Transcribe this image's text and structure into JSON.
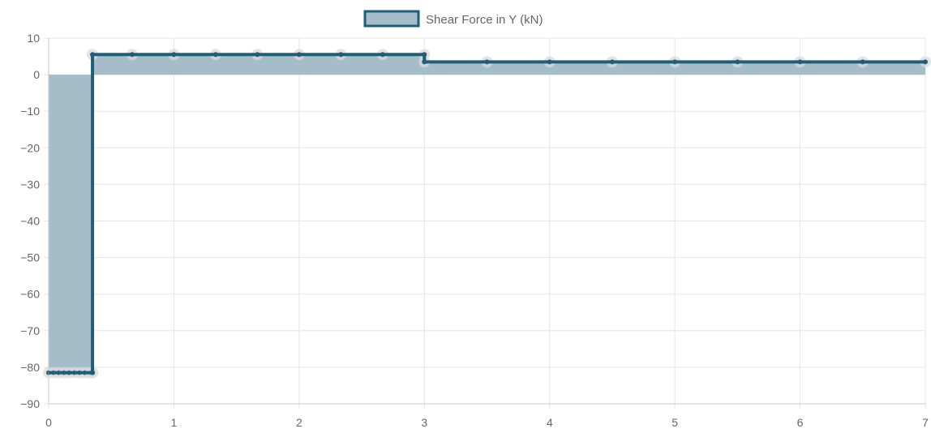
{
  "chart_data": {
    "type": "area",
    "legend": {
      "label": "Shear Force in Y (kN)",
      "position": "top"
    },
    "series": [
      {
        "name": "Shear Force in Y (kN)",
        "x": [
          0,
          0.0417,
          0.0833,
          0.125,
          0.1667,
          0.2083,
          0.25,
          0.2917,
          0.3333,
          0.35,
          0.35,
          0.6667,
          1.0,
          1.3333,
          1.6667,
          2.0,
          2.3333,
          2.6667,
          3.0,
          3.0,
          3.5,
          4.0,
          4.5,
          5.0,
          5.5,
          6.0,
          6.5,
          7.0
        ],
        "y": [
          -81.5,
          -81.5,
          -81.5,
          -81.5,
          -81.5,
          -81.5,
          -81.5,
          -81.5,
          -81.5,
          -81.5,
          5.5,
          5.5,
          5.5,
          5.5,
          5.5,
          5.5,
          5.5,
          5.5,
          5.5,
          3.5,
          3.5,
          3.5,
          3.5,
          3.5,
          3.5,
          3.5,
          3.5,
          3.5
        ]
      }
    ],
    "x_ticks": [
      "0",
      "1",
      "2",
      "3",
      "4",
      "5",
      "6",
      "7"
    ],
    "y_ticks": [
      "10",
      "0",
      "−10",
      "−20",
      "−30",
      "−40",
      "−50",
      "−60",
      "−70",
      "−80",
      "−90"
    ],
    "xlim": [
      0,
      7
    ],
    "ylim": [
      -90,
      10
    ],
    "grid": true,
    "colors": {
      "line": "#1f5e78",
      "fill": "#a5bdc8",
      "grid": "#e5e5e5",
      "axis": "#c8c8c8",
      "point_halo": "#d9d9d9",
      "text": "#666666"
    }
  }
}
